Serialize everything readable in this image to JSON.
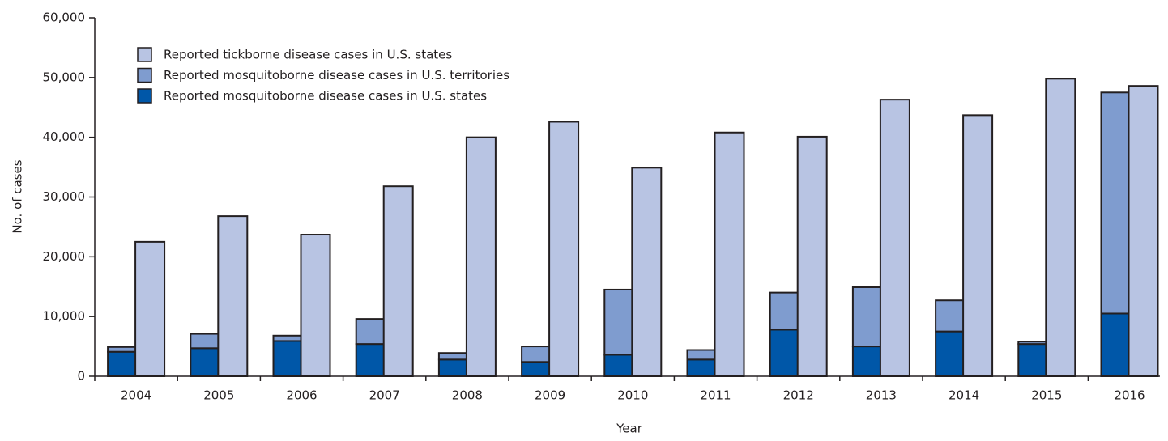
{
  "chart_data": {
    "type": "bar",
    "x_label": "Year",
    "y_label": "No. of cases",
    "categories": [
      "2004",
      "2005",
      "2006",
      "2007",
      "2008",
      "2009",
      "2010",
      "2011",
      "2012",
      "2013",
      "2014",
      "2015",
      "2016"
    ],
    "series": [
      {
        "name": "Reported mosquitoborne disease cases in U.S. states",
        "color": "#0057a8",
        "values": [
          4100,
          4700,
          5900,
          5400,
          2800,
          2400,
          3600,
          2800,
          7800,
          5000,
          7500,
          5400,
          10500
        ]
      },
      {
        "name": "Reported mosquitoborne disease cases in U.S. territories",
        "color": "#7f9ccf",
        "values": [
          800,
          2400,
          900,
          4200,
          1100,
          2600,
          10900,
          1600,
          6200,
          9900,
          5200,
          400,
          37000
        ]
      },
      {
        "name": "Reported tickborne disease cases in U.S. states",
        "color": "#b8c4e3",
        "values": [
          22500,
          26800,
          23700,
          31800,
          40000,
          42600,
          34900,
          40800,
          40100,
          46300,
          43700,
          49800,
          48600
        ]
      }
    ],
    "ylim": [
      0,
      60000
    ],
    "yticks": [
      0,
      {
        "value": 10000,
        "label": "10,000"
      },
      {
        "value": 20000,
        "label": "20,000"
      },
      {
        "value": 30000,
        "label": "30,000"
      },
      {
        "value": 40000,
        "label": "40,000"
      },
      {
        "value": 50000,
        "label": "50,000"
      },
      {
        "value": 60000,
        "label": "60,000"
      }
    ],
    "grid": false,
    "legend": "upper left"
  }
}
